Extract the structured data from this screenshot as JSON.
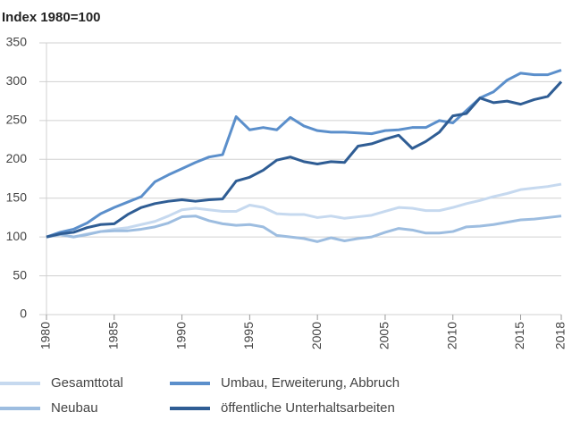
{
  "chart_data": {
    "type": "line",
    "title": "Index 1980=100",
    "x": [
      1980,
      1981,
      1982,
      1983,
      1984,
      1985,
      1986,
      1987,
      1988,
      1989,
      1990,
      1991,
      1992,
      1993,
      1994,
      1995,
      1996,
      1997,
      1998,
      1999,
      2000,
      2001,
      2002,
      2003,
      2004,
      2005,
      2006,
      2007,
      2008,
      2009,
      2010,
      2011,
      2012,
      2013,
      2014,
      2015,
      2016,
      2017,
      2018
    ],
    "series": [
      {
        "name": "Gesamttotal",
        "color": "#c6d9ef",
        "values": [
          100,
          103,
          100,
          104,
          107,
          110,
          112,
          116,
          120,
          127,
          135,
          137,
          135,
          133,
          133,
          141,
          138,
          130,
          129,
          129,
          125,
          127,
          124,
          126,
          128,
          133,
          138,
          137,
          134,
          134,
          138,
          143,
          147,
          152,
          156,
          161,
          163,
          165,
          168
        ]
      },
      {
        "name": "Neubau",
        "color": "#9dbde0",
        "values": [
          100,
          103,
          100,
          103,
          107,
          108,
          108,
          110,
          113,
          118,
          126,
          127,
          121,
          117,
          115,
          116,
          113,
          102,
          100,
          98,
          94,
          99,
          95,
          98,
          100,
          106,
          111,
          109,
          105,
          105,
          107,
          113,
          114,
          116,
          119,
          122,
          123,
          125,
          127
        ]
      },
      {
        "name": "Umbau, Erweiterung, Abbruch",
        "color": "#5b8fcb",
        "values": [
          100,
          106,
          110,
          118,
          130,
          138,
          145,
          152,
          171,
          180,
          188,
          196,
          203,
          206,
          255,
          238,
          241,
          238,
          254,
          243,
          237,
          235,
          235,
          234,
          233,
          237,
          238,
          241,
          241,
          250,
          247,
          263,
          279,
          287,
          302,
          311,
          309,
          309,
          315
        ]
      },
      {
        "name": "öffentliche Unterhaltsarbeiten",
        "color": "#2f5d94",
        "values": [
          100,
          104,
          106,
          112,
          116,
          117,
          129,
          138,
          143,
          146,
          148,
          146,
          148,
          149,
          172,
          177,
          186,
          199,
          203,
          197,
          194,
          197,
          196,
          217,
          220,
          226,
          231,
          214,
          223,
          235,
          256,
          259,
          279,
          273,
          275,
          271,
          277,
          281,
          300
        ]
      }
    ],
    "xlim": [
      1980,
      2018
    ],
    "xticks": [
      1980,
      1985,
      1990,
      1995,
      2000,
      2005,
      2010,
      2015,
      2018
    ],
    "ylim": [
      0,
      350
    ],
    "yticks": [
      0,
      50,
      100,
      150,
      200,
      250,
      300,
      350
    ],
    "grid": true
  }
}
